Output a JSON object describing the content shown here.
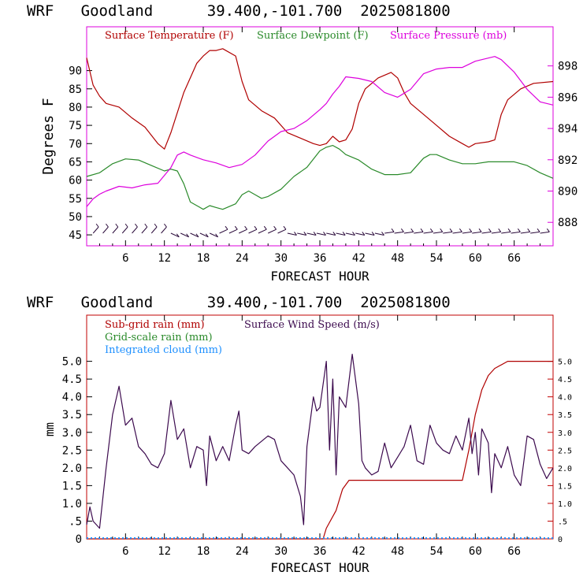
{
  "chart_data": [
    {
      "type": "line",
      "title": "WRF   Goodland      39.400,-101.700  2025081800",
      "xlabel": "FORECAST HOUR",
      "ylabel": "Degrees F",
      "xlim": [
        0,
        72
      ],
      "ylim": [
        42,
        102
      ],
      "y2lim": [
        886.5,
        900.5
      ],
      "xticks": [
        "6",
        "12",
        "18",
        "24",
        "30",
        "36",
        "42",
        "48",
        "54",
        "60",
        "66"
      ],
      "yticks": [
        "45",
        "50",
        "55",
        "60",
        "65",
        "70",
        "75",
        "80",
        "85",
        "90"
      ],
      "y2ticks": [
        "888",
        "890",
        "892",
        "894",
        "896",
        "898"
      ],
      "series": [
        {
          "name": "Surface Temperature (F)",
          "color": "#b00000",
          "axis": "left",
          "points": [
            [
              0,
              93.5
            ],
            [
              1,
              86
            ],
            [
              2,
              83
            ],
            [
              3,
              81
            ],
            [
              5,
              80
            ],
            [
              7,
              77
            ],
            [
              9,
              74.5
            ],
            [
              11,
              70
            ],
            [
              12,
              68.5
            ],
            [
              13,
              73
            ],
            [
              15,
              84
            ],
            [
              17,
              92
            ],
            [
              18,
              94
            ],
            [
              19,
              95.5
            ],
            [
              20,
              95.5
            ],
            [
              21,
              96
            ],
            [
              23,
              94
            ],
            [
              24,
              87
            ],
            [
              25,
              82
            ],
            [
              27,
              79
            ],
            [
              29,
              77
            ],
            [
              31,
              73
            ],
            [
              33,
              71.5
            ],
            [
              35,
              70
            ],
            [
              36,
              69.5
            ],
            [
              37,
              70
            ],
            [
              38,
              72
            ],
            [
              39,
              70.5
            ],
            [
              40,
              71
            ],
            [
              41,
              74
            ],
            [
              42,
              81
            ],
            [
              43,
              85
            ],
            [
              45,
              88
            ],
            [
              47,
              89.5
            ],
            [
              48,
              88
            ],
            [
              49,
              84
            ],
            [
              50,
              81
            ],
            [
              52,
              78
            ],
            [
              54,
              75
            ],
            [
              56,
              72
            ],
            [
              58,
              70
            ],
            [
              59,
              69
            ],
            [
              60,
              70
            ],
            [
              62,
              70.5
            ],
            [
              63,
              71
            ],
            [
              64,
              78
            ],
            [
              65,
              82
            ],
            [
              67,
              85
            ],
            [
              69,
              86.5
            ],
            [
              72,
              87
            ]
          ]
        },
        {
          "name": "Surface Dewpoint (F)",
          "color": "#2a8a2a",
          "axis": "left",
          "points": [
            [
              0,
              61
            ],
            [
              2,
              62
            ],
            [
              4,
              64.5
            ],
            [
              6,
              65.8
            ],
            [
              8,
              65.5
            ],
            [
              10,
              64
            ],
            [
              12,
              62.5
            ],
            [
              13,
              63
            ],
            [
              14,
              62.5
            ],
            [
              15,
              59
            ],
            [
              16,
              54
            ],
            [
              17,
              53
            ],
            [
              18,
              52
            ],
            [
              19,
              53
            ],
            [
              20,
              52.5
            ],
            [
              21,
              52
            ],
            [
              23,
              53.5
            ],
            [
              24,
              56
            ],
            [
              25,
              57
            ],
            [
              26,
              56
            ],
            [
              27,
              55
            ],
            [
              28,
              55.5
            ],
            [
              30,
              57.5
            ],
            [
              32,
              61
            ],
            [
              34,
              63.5
            ],
            [
              36,
              68
            ],
            [
              37,
              69
            ],
            [
              38,
              69.5
            ],
            [
              39,
              68.5
            ],
            [
              40,
              67
            ],
            [
              42,
              65.5
            ],
            [
              44,
              63
            ],
            [
              46,
              61.5
            ],
            [
              48,
              61.5
            ],
            [
              50,
              62
            ],
            [
              52,
              66
            ],
            [
              53,
              67
            ],
            [
              54,
              67
            ],
            [
              56,
              65.5
            ],
            [
              58,
              64.5
            ],
            [
              60,
              64.5
            ],
            [
              62,
              65
            ],
            [
              64,
              65
            ],
            [
              66,
              65
            ],
            [
              68,
              64
            ],
            [
              70,
              62
            ],
            [
              72,
              60.5
            ]
          ]
        },
        {
          "name": "Surface Pressure (mb)",
          "color": "#dd00dd",
          "axis": "right",
          "points": [
            [
              0,
              889
            ],
            [
              1,
              889.5
            ],
            [
              2,
              889.8
            ],
            [
              3,
              890
            ],
            [
              5,
              890.3
            ],
            [
              7,
              890.2
            ],
            [
              9,
              890.4
            ],
            [
              11,
              890.5
            ],
            [
              12,
              891
            ],
            [
              13,
              891.5
            ],
            [
              14,
              892.3
            ],
            [
              15,
              892.5
            ],
            [
              16,
              892.3
            ],
            [
              18,
              892
            ],
            [
              20,
              891.8
            ],
            [
              22,
              891.5
            ],
            [
              24,
              891.7
            ],
            [
              26,
              892.3
            ],
            [
              28,
              893.2
            ],
            [
              30,
              893.8
            ],
            [
              32,
              894
            ],
            [
              34,
              894.5
            ],
            [
              36,
              895.2
            ],
            [
              37,
              895.6
            ],
            [
              38,
              896.2
            ],
            [
              39,
              896.7
            ],
            [
              40,
              897.3
            ],
            [
              42,
              897.2
            ],
            [
              44,
              897
            ],
            [
              46,
              896.3
            ],
            [
              48,
              896
            ],
            [
              50,
              896.5
            ],
            [
              52,
              897.5
            ],
            [
              54,
              897.8
            ],
            [
              56,
              897.9
            ],
            [
              58,
              897.9
            ],
            [
              60,
              898.3
            ],
            [
              62,
              898.5
            ],
            [
              63,
              898.6
            ],
            [
              64,
              898.4
            ],
            [
              66,
              897.6
            ],
            [
              68,
              896.5
            ],
            [
              70,
              895.7
            ],
            [
              72,
              895.5
            ]
          ]
        }
      ],
      "wind_barbs": "present"
    },
    {
      "type": "line",
      "title": "WRF   Goodland      39.400,-101.700  2025081800",
      "xlabel": "FORECAST HOUR",
      "ylabel": "mm",
      "xlim": [
        0,
        72
      ],
      "ylim": [
        0,
        6.3
      ],
      "y2lim": [
        0,
        6.3
      ],
      "xticks": [
        "6",
        "12",
        "18",
        "24",
        "30",
        "36",
        "42",
        "48",
        "54",
        "60",
        "66"
      ],
      "yticks": [
        "0",
        ".5",
        "1.0",
        "1.5",
        "2.0",
        "2.5",
        "3.0",
        "3.5",
        "4.0",
        "4.5",
        "5.0"
      ],
      "y2ticks": [
        "0",
        ".5",
        "1.0",
        "1.5",
        "2.0",
        "2.5",
        "3.0",
        "3.5",
        "4.0",
        "4.5",
        "5.0"
      ],
      "series": [
        {
          "name": "Sub-grid rain (mm)",
          "color": "#b00000",
          "axis": "left",
          "points": [
            [
              0,
              0
            ],
            [
              36.5,
              0
            ],
            [
              37,
              0.3
            ],
            [
              38.5,
              0.8
            ],
            [
              39.5,
              1.4
            ],
            [
              40.5,
              1.65
            ],
            [
              50,
              1.65
            ],
            [
              58,
              1.65
            ],
            [
              59,
              2.5
            ],
            [
              60,
              3.5
            ],
            [
              61,
              4.2
            ],
            [
              62,
              4.6
            ],
            [
              63,
              4.8
            ],
            [
              65,
              5.0
            ],
            [
              72,
              5.0
            ]
          ]
        },
        {
          "name": "Surface Wind Speed (m/s)",
          "color": "#3c0a4e",
          "axis": "right",
          "points": [
            [
              0,
              0.4
            ],
            [
              0.5,
              0.9
            ],
            [
              1,
              0.5
            ],
            [
              2,
              0.3
            ],
            [
              3,
              2.0
            ],
            [
              4,
              3.5
            ],
            [
              5,
              4.3
            ],
            [
              6,
              3.2
            ],
            [
              7,
              3.4
            ],
            [
              8,
              2.6
            ],
            [
              9,
              2.4
            ],
            [
              10,
              2.1
            ],
            [
              11,
              2.0
            ],
            [
              12,
              2.4
            ],
            [
              13,
              3.9
            ],
            [
              14,
              2.8
            ],
            [
              15,
              3.1
            ],
            [
              16,
              2.0
            ],
            [
              17,
              2.6
            ],
            [
              18,
              2.5
            ],
            [
              18.5,
              1.5
            ],
            [
              19,
              2.9
            ],
            [
              20,
              2.2
            ],
            [
              21,
              2.6
            ],
            [
              22,
              2.2
            ],
            [
              23,
              3.2
            ],
            [
              23.5,
              3.6
            ],
            [
              24,
              2.5
            ],
            [
              25,
              2.4
            ],
            [
              26,
              2.6
            ],
            [
              28,
              2.9
            ],
            [
              29,
              2.8
            ],
            [
              30,
              2.2
            ],
            [
              31,
              2.0
            ],
            [
              32,
              1.8
            ],
            [
              33,
              1.2
            ],
            [
              33.5,
              0.4
            ],
            [
              34,
              2.6
            ],
            [
              35,
              4.0
            ],
            [
              35.5,
              3.6
            ],
            [
              36,
              3.7
            ],
            [
              37,
              5.0
            ],
            [
              37.5,
              2.5
            ],
            [
              38,
              4.5
            ],
            [
              38.5,
              1.8
            ],
            [
              39,
              4.0
            ],
            [
              40,
              3.7
            ],
            [
              41,
              5.2
            ],
            [
              42,
              3.8
            ],
            [
              42.5,
              2.2
            ],
            [
              43,
              2.0
            ],
            [
              44,
              1.8
            ],
            [
              45,
              1.9
            ],
            [
              46,
              2.7
            ],
            [
              47,
              2.0
            ],
            [
              48,
              2.3
            ],
            [
              49,
              2.6
            ],
            [
              50,
              3.2
            ],
            [
              51,
              2.2
            ],
            [
              52,
              2.1
            ],
            [
              53,
              3.2
            ],
            [
              54,
              2.7
            ],
            [
              55,
              2.5
            ],
            [
              56,
              2.4
            ],
            [
              57,
              2.9
            ],
            [
              58,
              2.5
            ],
            [
              59,
              3.4
            ],
            [
              59.5,
              2.4
            ],
            [
              60,
              3.0
            ],
            [
              60.5,
              1.8
            ],
            [
              61,
              3.1
            ],
            [
              62,
              2.7
            ],
            [
              62.5,
              1.3
            ],
            [
              63,
              2.4
            ],
            [
              64,
              2.0
            ],
            [
              65,
              2.6
            ],
            [
              66,
              1.8
            ],
            [
              67,
              1.5
            ],
            [
              68,
              2.9
            ],
            [
              69,
              2.8
            ],
            [
              70,
              2.1
            ],
            [
              71,
              1.7
            ],
            [
              72,
              2.0
            ]
          ]
        }
      ],
      "legend": [
        "Sub-grid rain (mm)",
        "Grid-scale rain (mm)",
        "Integrated cloud (mm)",
        "Surface Wind Speed (m/s)"
      ],
      "legend_colors": [
        "#b00000",
        "#2a8a2a",
        "#1e90ff",
        "#3c0a4e"
      ]
    }
  ]
}
